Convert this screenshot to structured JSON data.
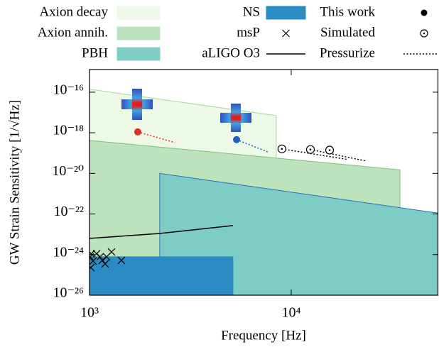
{
  "chart_data": {
    "type": "area",
    "x_label": "Frequency [Hz]",
    "y_label": "GW Strain Sensitivity [1/√Hz]",
    "log_x": true,
    "log_y": true,
    "xlim": [
      1000,
      53600
    ],
    "ylim": [
      1e-26,
      1.3e-15
    ],
    "xticks": [
      {
        "value": 1000,
        "label": "10³"
      },
      {
        "value": 10000,
        "label": "10⁴"
      }
    ],
    "yticks": [
      {
        "value": 1e-16,
        "label": "10⁻¹⁶"
      },
      {
        "value": 1e-18,
        "label": "10⁻¹⁸"
      },
      {
        "value": 1e-20,
        "label": "10⁻²⁰"
      },
      {
        "value": 1e-22,
        "label": "10⁻²²"
      },
      {
        "value": 1e-24,
        "label": "10⁻²⁴"
      },
      {
        "value": 1e-26,
        "label": "10⁻²⁶"
      }
    ],
    "series": [
      {
        "name": "Axion decay",
        "kind": "region",
        "color": "#eef8e6",
        "edge_color": "#a9d9a0",
        "x": [
          1000,
          8430,
          8430,
          1000
        ],
        "values": [
          1.4e-16,
          7e-18,
          1e-26,
          1e-26
        ]
      },
      {
        "name": "Axion annih.",
        "kind": "region",
        "color": "#bce3bc",
        "edge_color": "#7cc07c",
        "x": [
          1000,
          34600,
          34600,
          1000
        ],
        "values": [
          4.2e-19,
          1.5e-20,
          1e-26,
          1e-26
        ]
      },
      {
        "name": "PBH",
        "kind": "region",
        "color": "#7dccc6",
        "edge_color": "#2c6fbb",
        "x": [
          2230,
          53600,
          53600,
          2230
        ],
        "values": [
          1e-20,
          1.1e-22,
          1e-26,
          1e-26
        ]
      },
      {
        "name": "NS",
        "kind": "region",
        "color": "#2b8cc4",
        "edge_color": "#2b8cc4",
        "x": [
          1000,
          5140,
          5140,
          1000
        ],
        "values": [
          7.8e-25,
          7.8e-25,
          1e-26,
          1e-26
        ]
      },
      {
        "name": "aLIGO O3",
        "kind": "line",
        "color": "#000000",
        "x": [
          1000,
          2230,
          5140
        ],
        "values": [
          6.3e-24,
          1.1e-23,
          2.7e-23
        ]
      },
      {
        "name": "msP",
        "kind": "marker",
        "marker": "x",
        "color": "#000000",
        "x": [
          1008,
          1015,
          1041,
          1084,
          1129,
          1157,
          1195,
          1215,
          1286,
          1440,
          1020
        ],
        "values": [
          7.8e-25,
          2.3e-25,
          4.8e-25,
          1.1e-24,
          7.8e-25,
          5.2e-25,
          3.5e-25,
          7.8e-25,
          1.35e-24,
          5.2e-25,
          1.1e-24
        ]
      },
      {
        "name": "Pressurize",
        "kind": "dotted",
        "color": "#000000",
        "segment_colors": [
          "#e0301e",
          "#1f5fbf",
          "#000000",
          "#000000"
        ],
        "x": [
          1735,
          2650,
          null,
          5360,
          7780,
          null,
          8990,
          19150,
          null,
          12450,
          23400
        ],
        "values": [
          1.1e-18,
          3.3e-19,
          null,
          4.6e-19,
          1.07e-19,
          null,
          1.6e-19,
          4.8e-20,
          null,
          1.5e-19,
          4.1e-20
        ]
      },
      {
        "name": "This work",
        "kind": "marker",
        "marker": "dot",
        "color": "#000000",
        "point_colors": [
          "#e0301e",
          "#1f5fbf"
        ],
        "x": [
          1735,
          5360
        ],
        "values": [
          1.1e-18,
          4.6e-19
        ]
      },
      {
        "name": "Simulated",
        "kind": "marker",
        "marker": "circle",
        "color": "#000000",
        "x": [
          8990,
          12450,
          15500
        ],
        "values": [
          1.6e-19,
          1.5e-19,
          1.4e-19
        ]
      }
    ]
  }
}
